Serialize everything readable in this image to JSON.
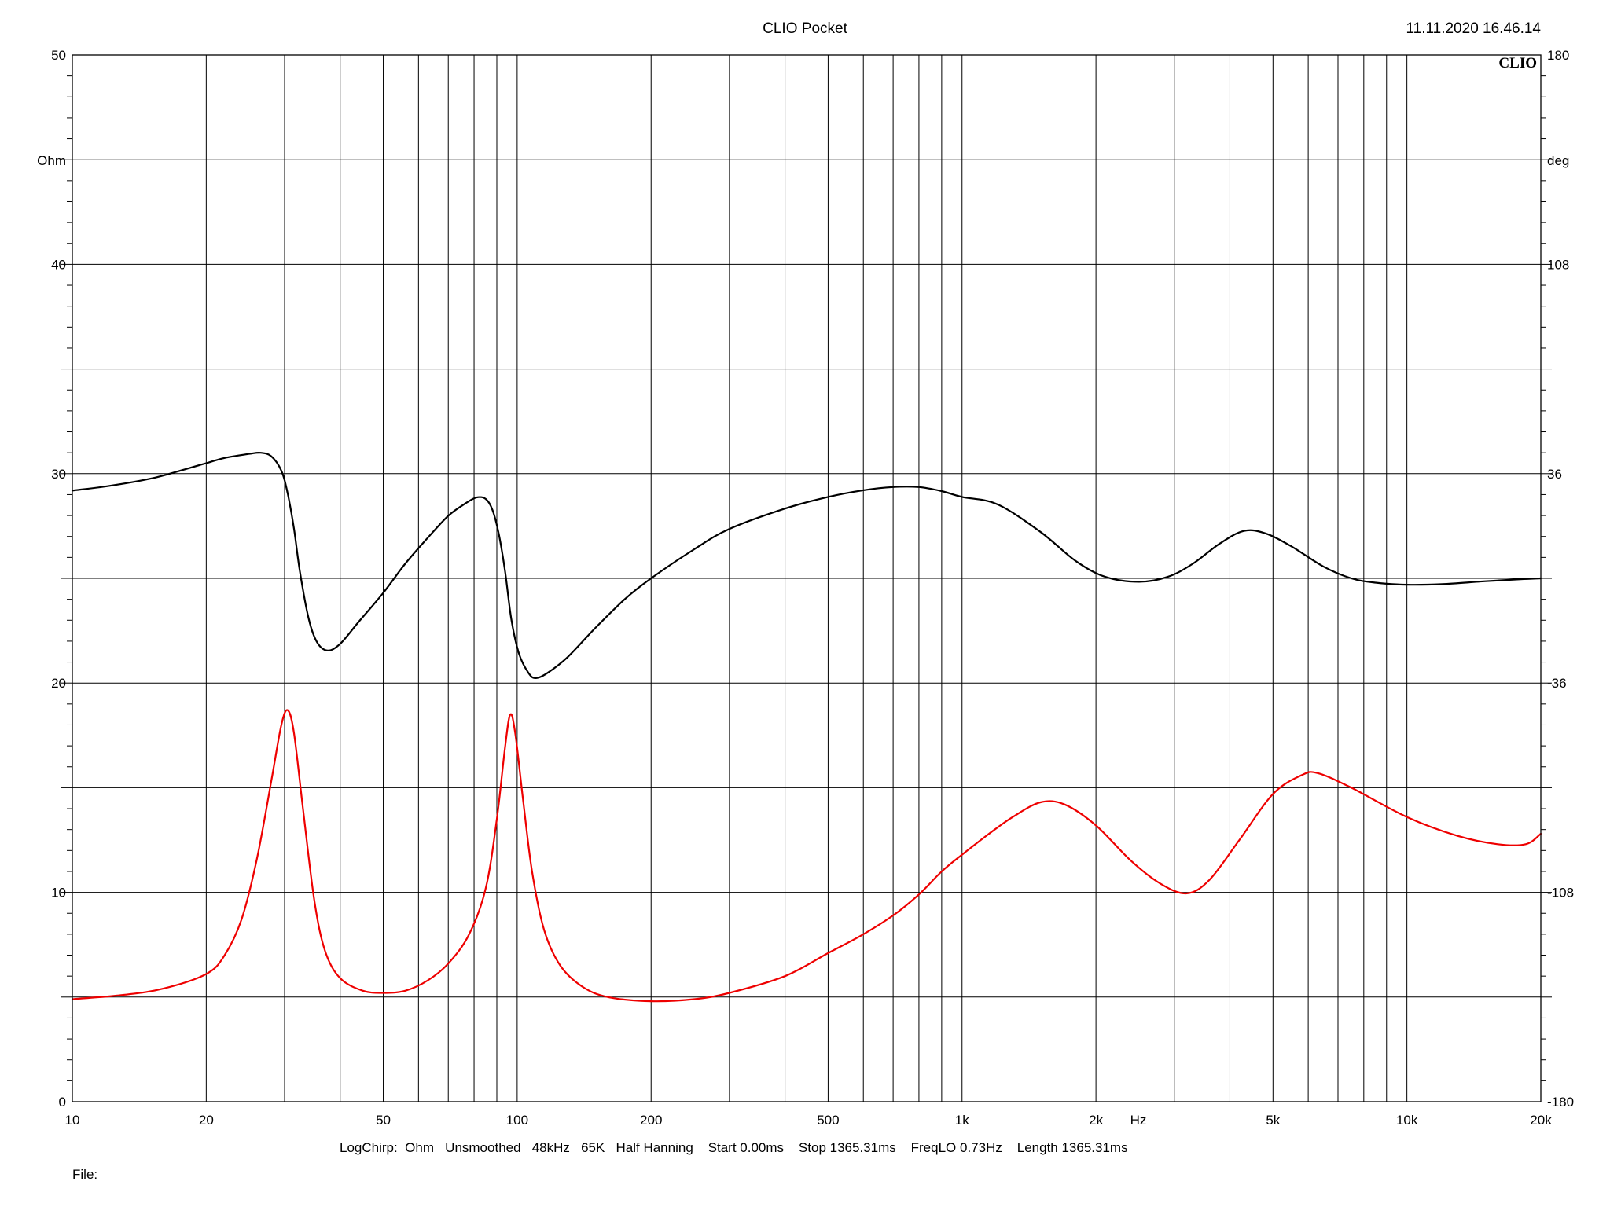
{
  "header": {
    "title": "CLIO Pocket",
    "timestamp": "11.11.2020 16.46.14",
    "brand": "CLIO"
  },
  "footer": {
    "settings": "LogChirp:  Ohm   Unsmoothed   48kHz   65K   Half Hanning    Start 0.00ms    Stop 1365.31ms    FreqLO 0.73Hz    Length 1365.31ms",
    "file_label": "File:"
  },
  "chart_data": {
    "type": "line",
    "title": "CLIO Pocket",
    "xscale": "log",
    "xlim": [
      10,
      20000
    ],
    "xticks": [
      {
        "value": 10,
        "label": "10"
      },
      {
        "value": 20,
        "label": "20"
      },
      {
        "value": 50,
        "label": "50"
      },
      {
        "value": 100,
        "label": "100"
      },
      {
        "value": 200,
        "label": "200"
      },
      {
        "value": 500,
        "label": "500"
      },
      {
        "value": 1000,
        "label": "1k"
      },
      {
        "value": 2000,
        "label": "2k"
      },
      {
        "value": 5000,
        "label": "5k"
      },
      {
        "value": 10000,
        "label": "10k"
      },
      {
        "value": 20000,
        "label": "20k"
      }
    ],
    "xunit": "Hz",
    "y_left": {
      "unit": "Ohm",
      "lim": [
        0,
        50
      ],
      "ticks": [
        {
          "value": 0,
          "label": "0"
        },
        {
          "value": 10,
          "label": "10"
        },
        {
          "value": 20,
          "label": "20"
        },
        {
          "value": 30,
          "label": "30"
        },
        {
          "value": 40,
          "label": "40"
        },
        {
          "value": 50,
          "label": "50"
        }
      ]
    },
    "y_right": {
      "unit": "deg",
      "lim": [
        -180,
        180
      ],
      "ticks": [
        {
          "value": -180,
          "label": "-180"
        },
        {
          "value": -108,
          "label": "-108"
        },
        {
          "value": -36,
          "label": "-36"
        },
        {
          "value": 36,
          "label": "36"
        },
        {
          "value": 108,
          "label": "108"
        },
        {
          "value": 180,
          "label": "180"
        }
      ]
    },
    "grid": true,
    "series": [
      {
        "axis": "right",
        "color": "#000000",
        "points": [
          [
            10,
            30.2
          ],
          [
            12,
            31.7
          ],
          [
            15,
            34.3
          ],
          [
            18,
            37.6
          ],
          [
            20,
            39.6
          ],
          [
            22,
            41.4
          ],
          [
            25,
            42.8
          ],
          [
            26.5,
            43.2
          ],
          [
            28,
            42.0
          ],
          [
            29.5,
            37.0
          ],
          [
            30.5,
            29.0
          ],
          [
            31.5,
            17.0
          ],
          [
            32.5,
            2.0
          ],
          [
            34,
            -14.0
          ],
          [
            35.5,
            -22.0
          ],
          [
            37.5,
            -24.8
          ],
          [
            40,
            -22.5
          ],
          [
            44,
            -15.0
          ],
          [
            50,
            -5.0
          ],
          [
            56,
            5.0
          ],
          [
            63,
            14.0
          ],
          [
            70,
            21.5
          ],
          [
            76,
            25.5
          ],
          [
            81,
            27.8
          ],
          [
            85,
            27.3
          ],
          [
            88,
            23.5
          ],
          [
            91,
            15.0
          ],
          [
            94,
            2.0
          ],
          [
            97,
            -14.0
          ],
          [
            101,
            -26.0
          ],
          [
            106,
            -32.5
          ],
          [
            110,
            -34.3
          ],
          [
            117,
            -32.5
          ],
          [
            130,
            -27.0
          ],
          [
            150,
            -17.0
          ],
          [
            175,
            -7.0
          ],
          [
            200,
            0.0
          ],
          [
            250,
            10.0
          ],
          [
            300,
            17.0
          ],
          [
            400,
            24.0
          ],
          [
            500,
            28.0
          ],
          [
            600,
            30.3
          ],
          [
            700,
            31.4
          ],
          [
            800,
            31.4
          ],
          [
            900,
            30.0
          ],
          [
            1000,
            28.0
          ],
          [
            1200,
            25.5
          ],
          [
            1500,
            16.0
          ],
          [
            1800,
            6.0
          ],
          [
            2100,
            0.5
          ],
          [
            2500,
            -1.2
          ],
          [
            2900,
            0.5
          ],
          [
            3300,
            5.0
          ],
          [
            3800,
            12.0
          ],
          [
            4300,
            16.3
          ],
          [
            4800,
            15.5
          ],
          [
            5500,
            11.0
          ],
          [
            6500,
            4.0
          ],
          [
            7500,
            0.0
          ],
          [
            8500,
            -1.5
          ],
          [
            10000,
            -2.2
          ],
          [
            12000,
            -2.0
          ],
          [
            15000,
            -1.0
          ],
          [
            18000,
            -0.3
          ],
          [
            20000,
            0.0
          ]
        ]
      },
      {
        "axis": "left",
        "color": "#ee0000",
        "points": [
          [
            10,
            4.9
          ],
          [
            13,
            5.1
          ],
          [
            16,
            5.4
          ],
          [
            20,
            6.1
          ],
          [
            22,
            7.0
          ],
          [
            24,
            8.7
          ],
          [
            26,
            11.6
          ],
          [
            28,
            15.3
          ],
          [
            29.5,
            18.0
          ],
          [
            30.5,
            18.7
          ],
          [
            31.5,
            17.6
          ],
          [
            33,
            14.0
          ],
          [
            35,
            9.6
          ],
          [
            37,
            7.2
          ],
          [
            40,
            5.9
          ],
          [
            45,
            5.3
          ],
          [
            50,
            5.2
          ],
          [
            56,
            5.3
          ],
          [
            63,
            5.8
          ],
          [
            70,
            6.6
          ],
          [
            78,
            8.0
          ],
          [
            85,
            10.2
          ],
          [
            90,
            13.5
          ],
          [
            94,
            17.0
          ],
          [
            96.5,
            18.5
          ],
          [
            99,
            17.6
          ],
          [
            103,
            14.5
          ],
          [
            108,
            11.0
          ],
          [
            115,
            8.2
          ],
          [
            125,
            6.5
          ],
          [
            140,
            5.5
          ],
          [
            160,
            5.0
          ],
          [
            200,
            4.8
          ],
          [
            250,
            4.9
          ],
          [
            300,
            5.2
          ],
          [
            400,
            6.0
          ],
          [
            500,
            7.1
          ],
          [
            600,
            8.0
          ],
          [
            700,
            8.9
          ],
          [
            800,
            9.9
          ],
          [
            900,
            11.0
          ],
          [
            1000,
            11.8
          ],
          [
            1150,
            12.8
          ],
          [
            1300,
            13.6
          ],
          [
            1500,
            14.3
          ],
          [
            1700,
            14.2
          ],
          [
            2000,
            13.2
          ],
          [
            2400,
            11.5
          ],
          [
            2800,
            10.4
          ],
          [
            3200,
            9.95
          ],
          [
            3600,
            10.6
          ],
          [
            4200,
            12.5
          ],
          [
            5000,
            14.7
          ],
          [
            5800,
            15.6
          ],
          [
            6300,
            15.7
          ],
          [
            7500,
            15.0
          ],
          [
            10000,
            13.6
          ],
          [
            13000,
            12.7
          ],
          [
            16000,
            12.3
          ],
          [
            18500,
            12.3
          ],
          [
            20000,
            12.8
          ]
        ]
      }
    ]
  }
}
